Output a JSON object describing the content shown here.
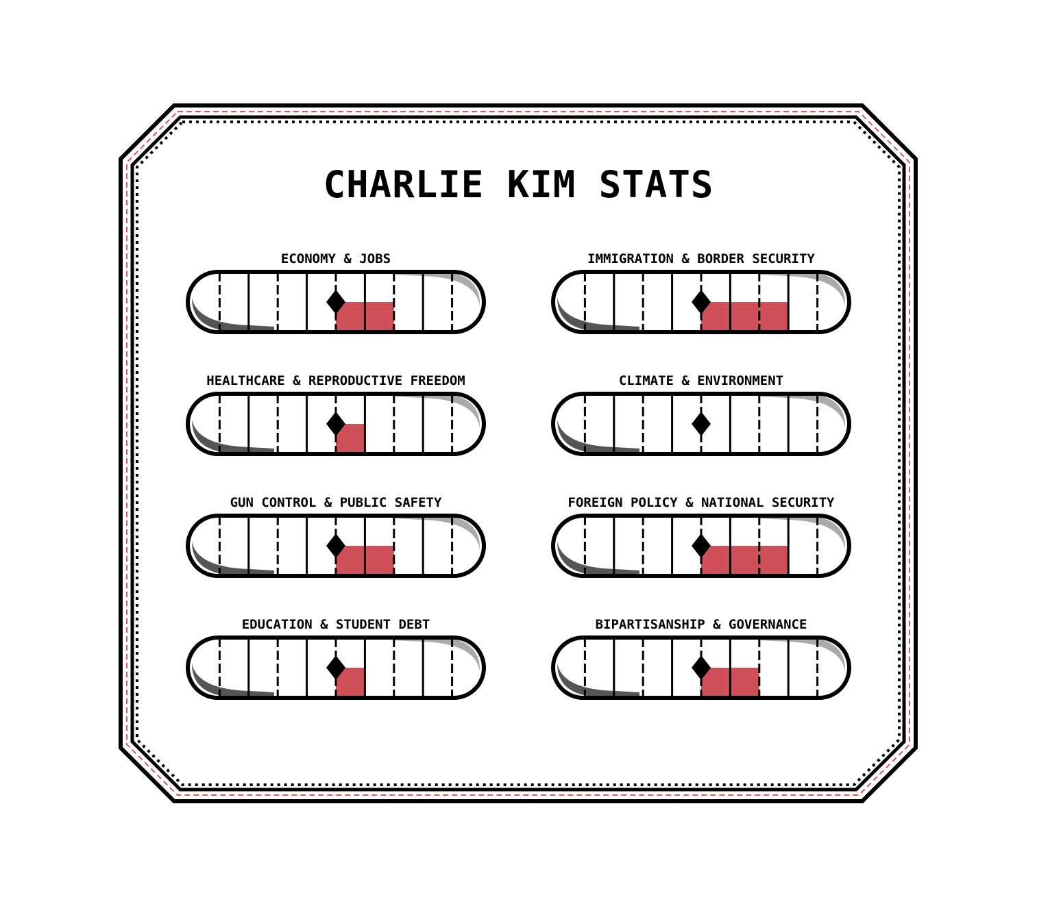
{
  "title": "CHARLIE KIM STATS",
  "colors": {
    "fill": "#d0505a",
    "border": "#000000",
    "frame_dash": "#e05560",
    "shade_dark": "#555555",
    "shade_light": "#aaaaaa"
  },
  "gauge_segments": 10,
  "marker_segment": 5,
  "stats": [
    {
      "label": "ECONOMY & JOBS",
      "filled_segments": 2
    },
    {
      "label": "IMMIGRATION & BORDER SECURITY",
      "filled_segments": 3
    },
    {
      "label": "HEALTHCARE & REPRODUCTIVE FREEDOM",
      "filled_segments": 1
    },
    {
      "label": "CLIMATE & ENVIRONMENT",
      "filled_segments": 0
    },
    {
      "label": "GUN CONTROL & PUBLIC SAFETY",
      "filled_segments": 2
    },
    {
      "label": "FOREIGN POLICY & NATIONAL SECURITY",
      "filled_segments": 3
    },
    {
      "label": "EDUCATION & STUDENT DEBT",
      "filled_segments": 1
    },
    {
      "label": "BIPARTISANSHIP & GOVERNANCE",
      "filled_segments": 2
    }
  ]
}
